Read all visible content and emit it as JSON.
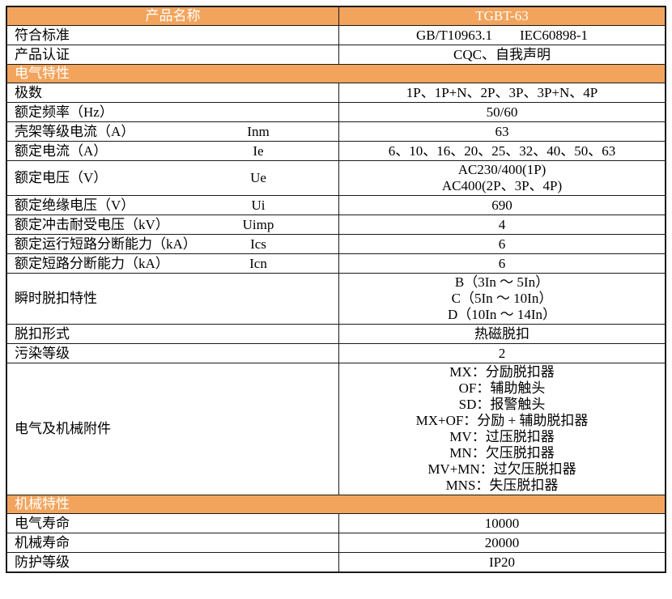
{
  "colors": {
    "accent_orange": "#F2A45C",
    "border": "#1a1a1a",
    "header_text": "#ffffff",
    "body_text": "#000000"
  },
  "table": {
    "header": {
      "left": "产品名称",
      "right": "TGBT-63"
    },
    "rows": [
      {
        "type": "row",
        "label": "符合标准",
        "values": [
          "GB/T10963.1　　IEC60898-1"
        ]
      },
      {
        "type": "row",
        "label": "产品认证",
        "values": [
          "CQC、自我声明"
        ]
      },
      {
        "type": "section",
        "label": "电气特性"
      },
      {
        "type": "row",
        "label": "极数",
        "values": [
          "1P、1P+N、2P、3P、3P+N、4P"
        ]
      },
      {
        "type": "row",
        "label": "额定频率（Hz）",
        "values": [
          "50/60"
        ]
      },
      {
        "type": "row",
        "label": "壳架等级电流（A）",
        "symbol": "Inm",
        "values": [
          "63"
        ]
      },
      {
        "type": "row",
        "label": "额定电流（A）",
        "symbol": "Ie",
        "values": [
          "6、10、16、20、25、32、40、50、63"
        ]
      },
      {
        "type": "row",
        "label": "额定电压（V）",
        "symbol": "Ue",
        "values": [
          "AC230/400(1P)",
          "AC400(2P、3P、4P)"
        ]
      },
      {
        "type": "row",
        "label": "额定绝缘电压（V）",
        "symbol": "Ui",
        "values": [
          "690"
        ]
      },
      {
        "type": "row",
        "label": "额定冲击耐受电压（kV）",
        "symbol": "Uimp",
        "values": [
          "4"
        ]
      },
      {
        "type": "row",
        "label": "额定运行短路分断能力（kA）",
        "symbol": "Ics",
        "values": [
          "6"
        ]
      },
      {
        "type": "row",
        "label": "额定短路分断能力（kA）",
        "symbol": "Icn",
        "values": [
          "6"
        ]
      },
      {
        "type": "row",
        "label": "瞬时脱扣特性",
        "values": [
          "B（3In ～ 5In）",
          "C（5In ～ 10In）",
          "D（10In ～ 14In）"
        ]
      },
      {
        "type": "row",
        "label": "脱扣形式",
        "values": [
          "热磁脱扣"
        ]
      },
      {
        "type": "row",
        "label": "污染等级",
        "values": [
          "2"
        ]
      },
      {
        "type": "row",
        "label": "电气及机械附件",
        "values": [
          "MX：分励脱扣器",
          "OF：辅助触头",
          "SD：报警触头",
          "MX+OF：分励 + 辅助脱扣器",
          "MV：过压脱扣器",
          "MN：欠压脱扣器",
          "MV+MN：过欠压脱扣器",
          "MNS：失压脱扣器"
        ]
      },
      {
        "type": "section",
        "label": "机械特性"
      },
      {
        "type": "row",
        "label": "电气寿命",
        "values": [
          "10000"
        ]
      },
      {
        "type": "row",
        "label": "机械寿命",
        "values": [
          "20000"
        ]
      },
      {
        "type": "row",
        "label": "防护等级",
        "values": [
          "IP20"
        ]
      }
    ]
  }
}
